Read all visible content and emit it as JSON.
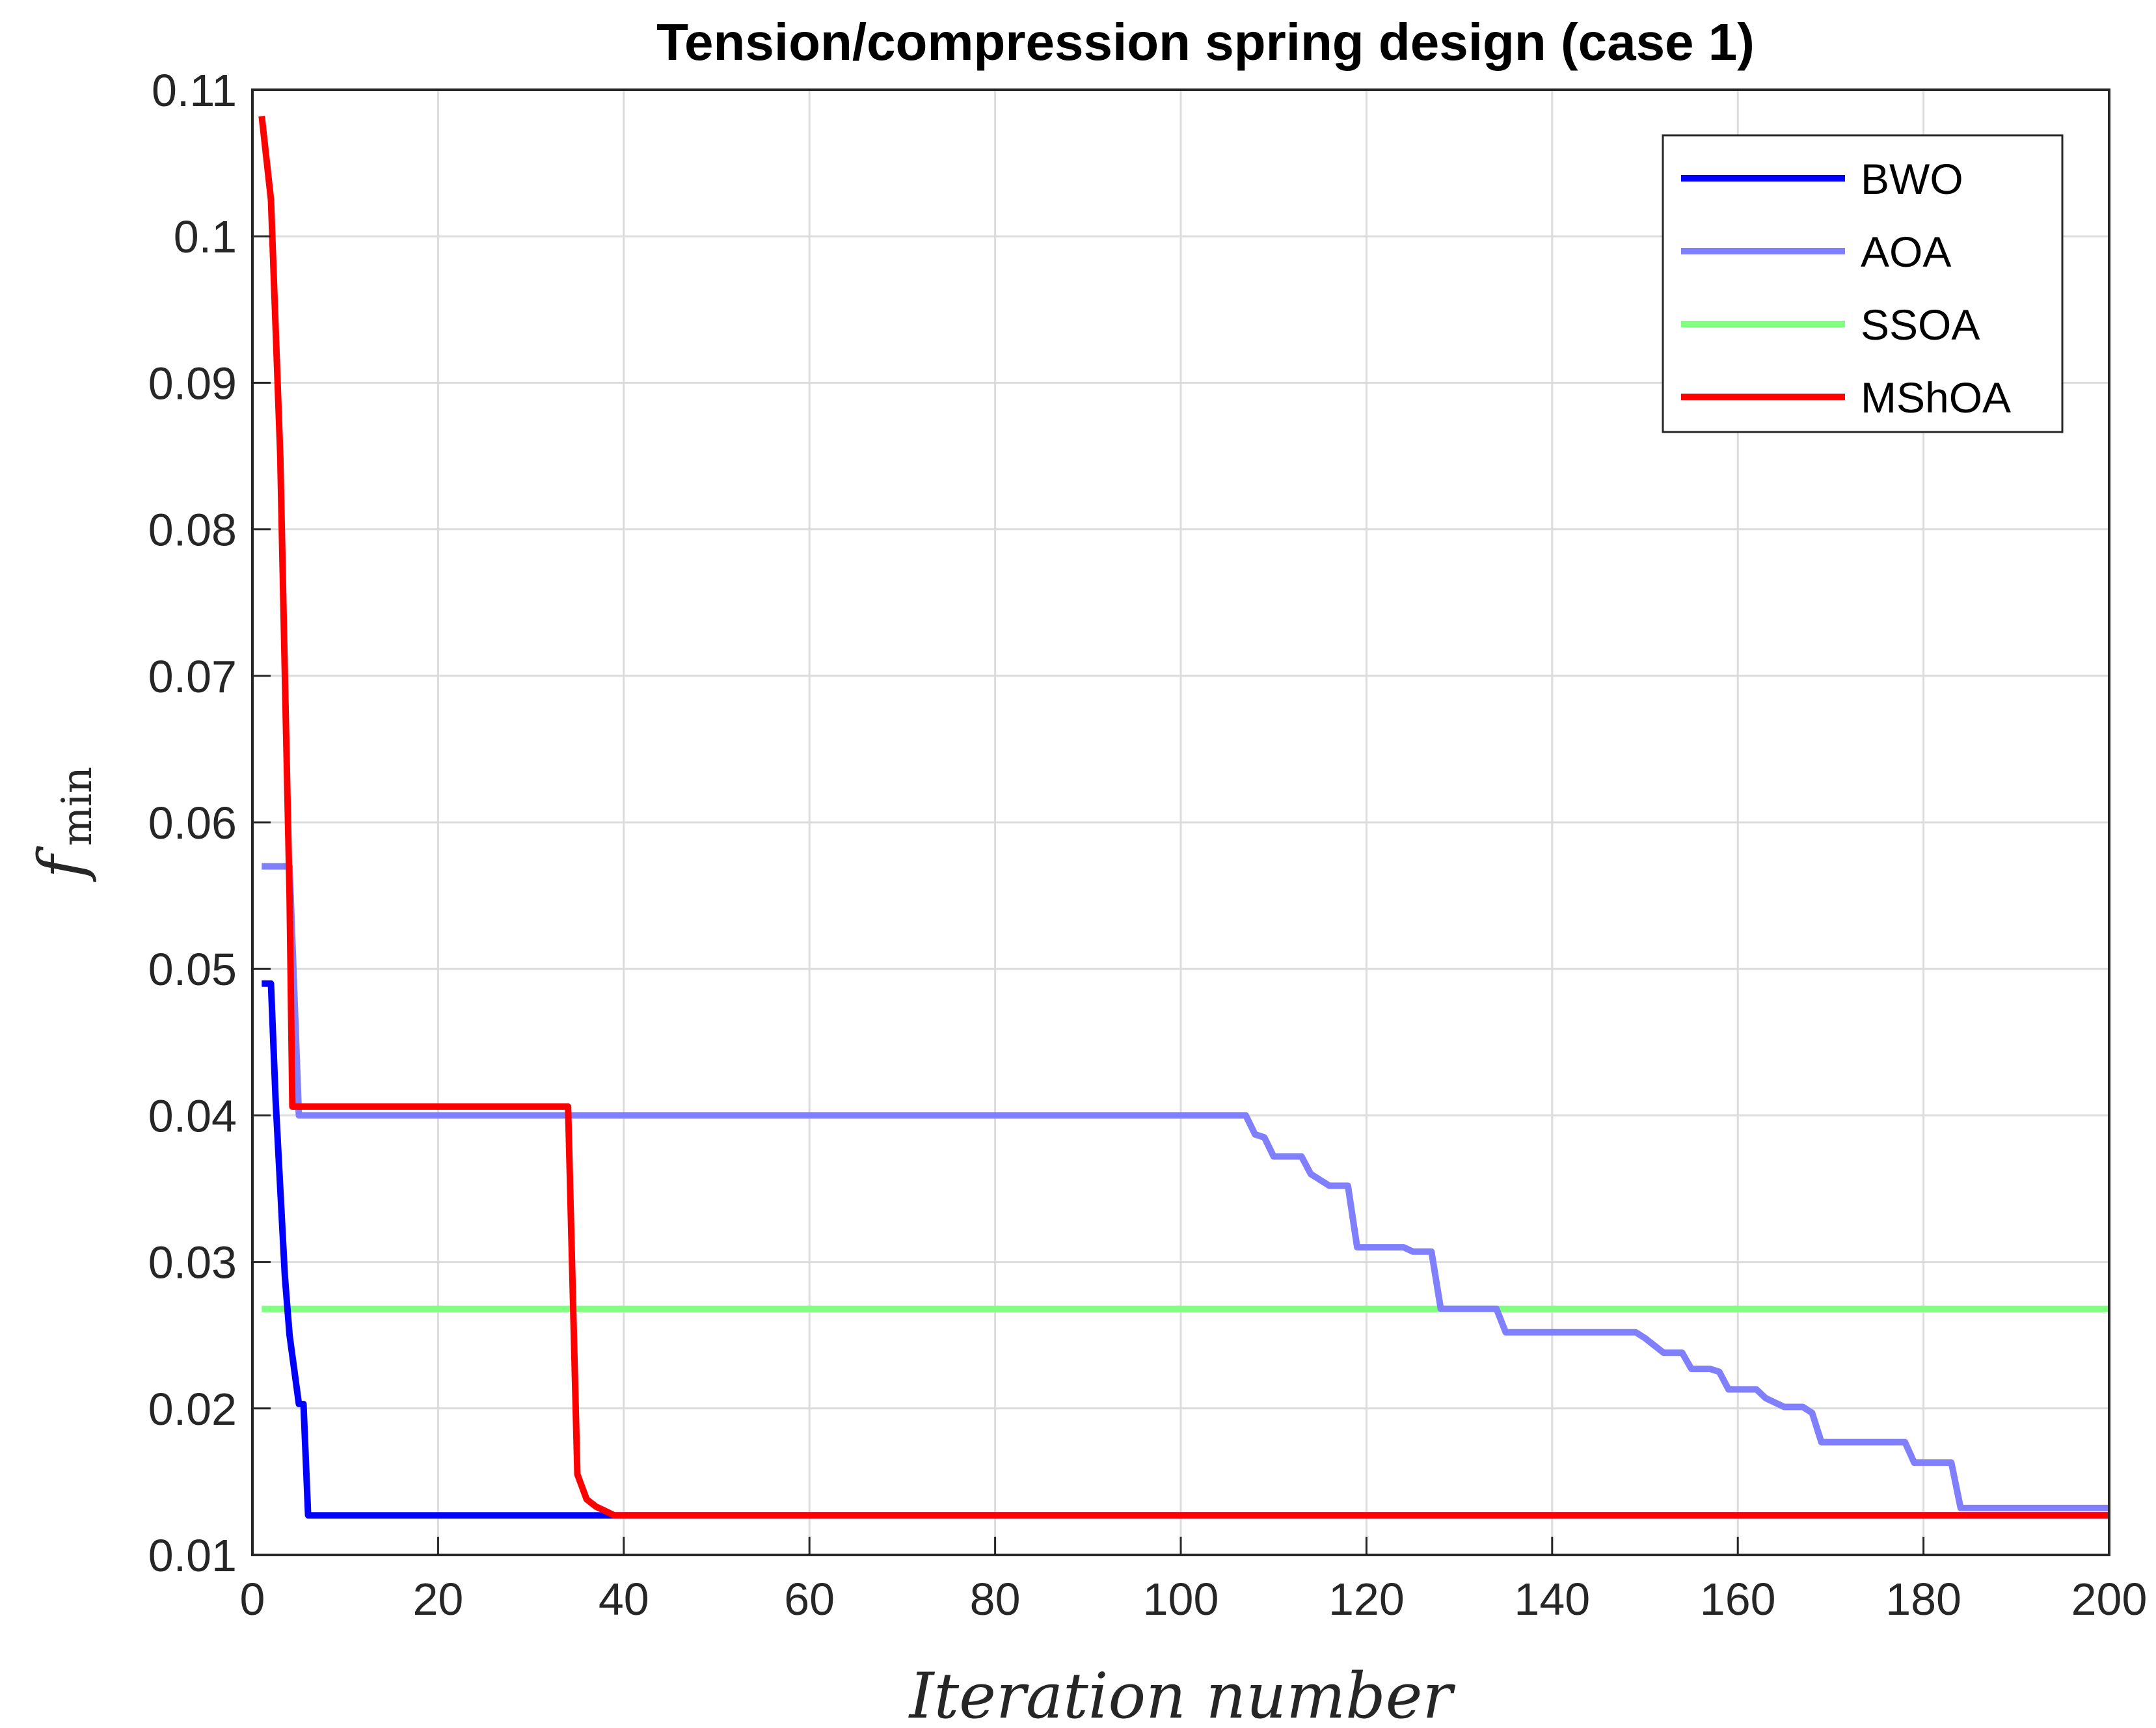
{
  "chart_data": {
    "type": "line",
    "title": "Tension/compression spring design (case 1)",
    "xlabel": "Iteration    number",
    "ylabel": {
      "main": "f",
      "sub": "min"
    },
    "xlim": [
      0,
      200
    ],
    "ylim": [
      0.01,
      0.11
    ],
    "xticks": [
      0,
      20,
      40,
      60,
      80,
      100,
      120,
      140,
      160,
      180,
      200
    ],
    "yticks": [
      0.01,
      0.02,
      0.03,
      0.04,
      0.05,
      0.06,
      0.07,
      0.08,
      0.09,
      0.1,
      0.11
    ],
    "xtick_labels": [
      "0",
      "20",
      "40",
      "60",
      "80",
      "100",
      "120",
      "140",
      "160",
      "180",
      "200"
    ],
    "ytick_labels": [
      "0.01",
      "0.02",
      "0.03",
      "0.04",
      "0.05",
      "0.06",
      "0.07",
      "0.08",
      "0.09",
      "0.1",
      "0.11"
    ],
    "grid": true,
    "legend_position": "top-right",
    "series": [
      {
        "name": "BWO",
        "color": "#0000ff",
        "x": [
          1,
          2,
          2.5,
          3,
          3.5,
          4,
          5,
          5.5,
          6,
          40,
          200
        ],
        "y": [
          0.049,
          0.049,
          0.041,
          0.035,
          0.029,
          0.025,
          0.0203,
          0.0203,
          0.0127,
          0.0127,
          0.0127
        ]
      },
      {
        "name": "AOA",
        "color": "#8080ff",
        "x": [
          1,
          4,
          5,
          107,
          108,
          109,
          110,
          113,
          114,
          116,
          118,
          119,
          124,
          125,
          127,
          128,
          134,
          135,
          149,
          150,
          152,
          154,
          155,
          157,
          158,
          159,
          162,
          163,
          165,
          167,
          168,
          169,
          178,
          179,
          183,
          184,
          200
        ],
        "y": [
          0.057,
          0.057,
          0.04,
          0.04,
          0.0387,
          0.0385,
          0.0372,
          0.0372,
          0.036,
          0.0352,
          0.0352,
          0.031,
          0.031,
          0.0307,
          0.0307,
          0.0268,
          0.0268,
          0.0252,
          0.0252,
          0.0248,
          0.0238,
          0.0238,
          0.0227,
          0.0227,
          0.0225,
          0.0213,
          0.0213,
          0.0207,
          0.0201,
          0.0201,
          0.0197,
          0.0177,
          0.0177,
          0.0163,
          0.0163,
          0.0132,
          0.0132
        ]
      },
      {
        "name": "SSOA",
        "color": "#80ff80",
        "x": [
          1,
          200
        ],
        "y": [
          0.0268,
          0.0268
        ]
      },
      {
        "name": "MShOA",
        "color": "#ff0000",
        "x": [
          1,
          2,
          3,
          3.5,
          4,
          4.3,
          34,
          35,
          36,
          37,
          38,
          39,
          200
        ],
        "y": [
          0.1082,
          0.1025,
          0.085,
          0.07,
          0.055,
          0.0406,
          0.0406,
          0.0155,
          0.0138,
          0.0133,
          0.013,
          0.0127,
          0.0127
        ]
      }
    ]
  }
}
